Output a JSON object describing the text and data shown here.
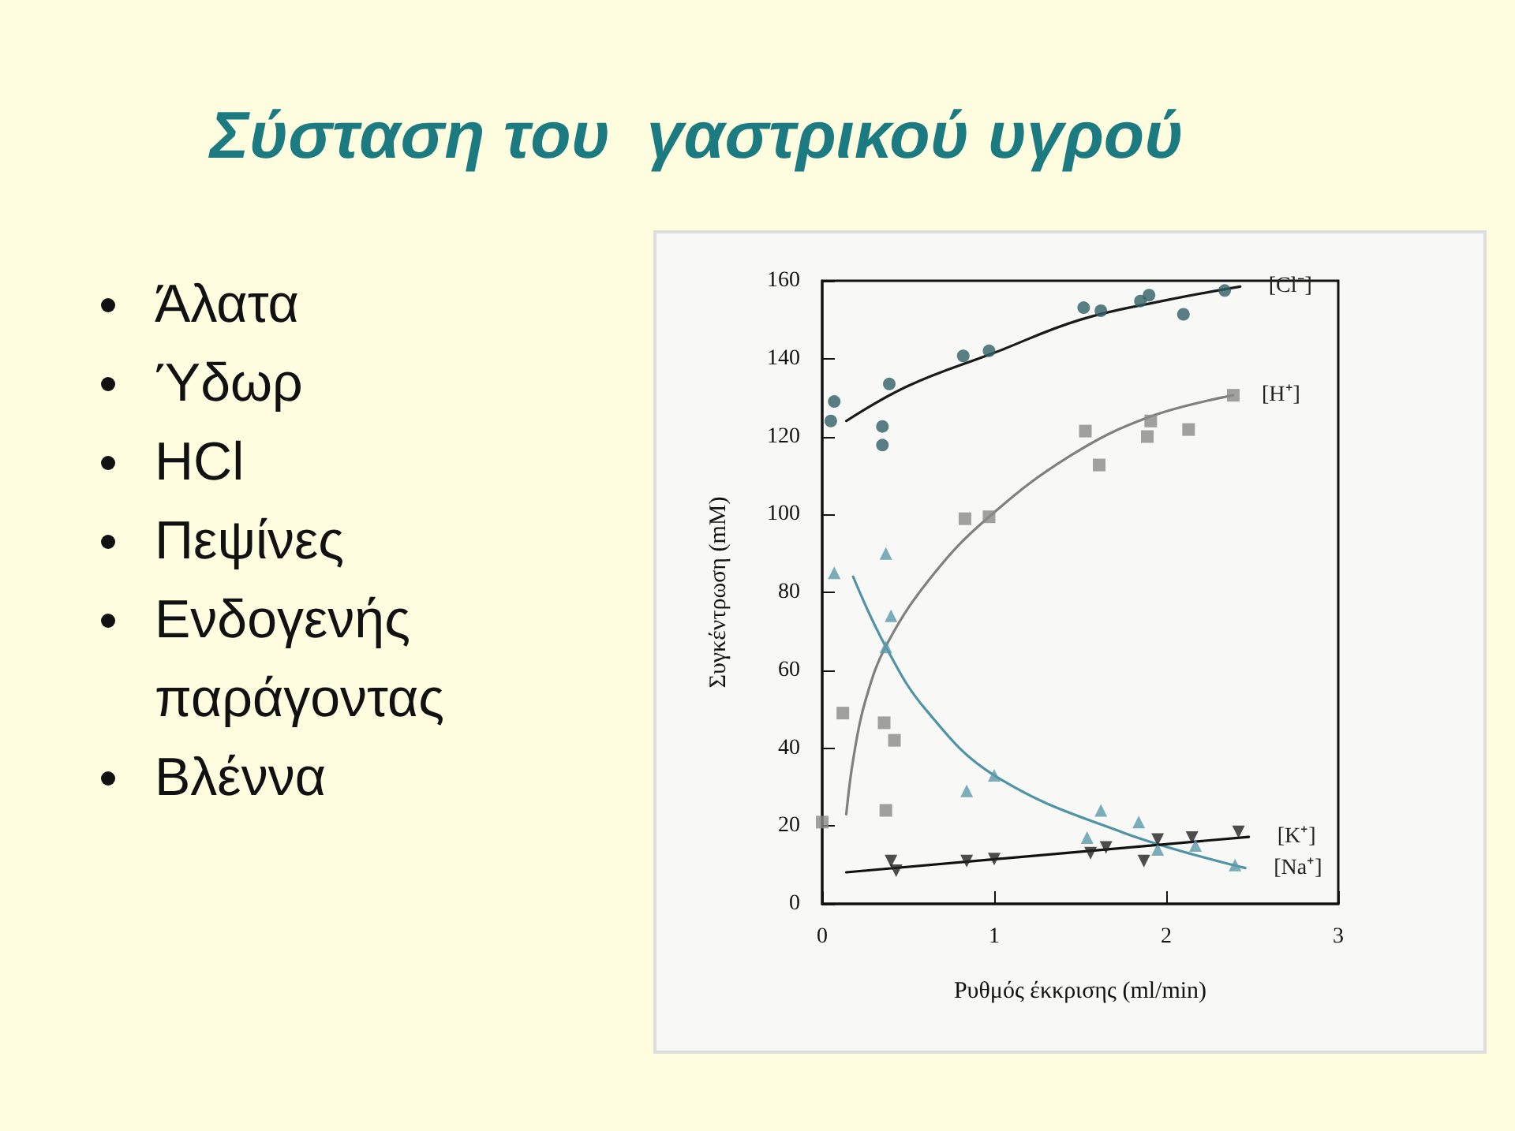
{
  "chart_data": {
    "type": "scatter",
    "title": "Σύσταση του  γαστρικού υγρού",
    "annotations": [
      "Άλατα",
      "Ύδωρ",
      "HCl",
      "Πεψίνες",
      "Ενδογενής παράγοντας",
      "Βλέννα"
    ],
    "xlabel": "Ρυθμός έκκρισης (ml/min)",
    "ylabel": "Συγκέντρωση (mM)",
    "xlim": [
      0,
      3
    ],
    "xticks": [
      0,
      1,
      2,
      3
    ],
    "ylim": [
      0,
      160
    ],
    "yticks": [
      0,
      20,
      40,
      60,
      80,
      100,
      120,
      140,
      160
    ],
    "grid": false,
    "legend": false,
    "series": [
      {
        "marker": "circle",
        "color": "#2f5f66",
        "x": [
          0.05,
          0.07,
          0.35,
          0.35,
          0.39,
          0.82,
          0.97,
          1.52,
          1.62,
          1.85,
          1.9,
          2.1,
          2.34
        ],
        "values": [
          124,
          129,
          122.6,
          117.8,
          133.5,
          140.7,
          142,
          153.1,
          152.3,
          154.8,
          156.3,
          151.4,
          157.5
        ]
      },
      {
        "type": "line",
        "name": "[Cl⁻]",
        "marker": "none",
        "line_style": "solid",
        "color": "#1a1a1a",
        "x": [
          0.14,
          0.5,
          1,
          1.5,
          2,
          2.43
        ],
        "values": [
          124,
          133,
          141.5,
          150,
          155,
          158.5
        ]
      },
      {
        "marker": "square",
        "color": "#8a8a8a",
        "x": [
          0,
          0.12,
          0.36,
          0.42,
          0.37,
          0.83,
          0.97,
          1.53,
          1.61,
          1.89,
          1.91,
          2.13,
          2.39
        ],
        "values": [
          21,
          49,
          46.5,
          42,
          24,
          98.9,
          99.4,
          121.4,
          112.7,
          120,
          124,
          121.8,
          130.6
        ]
      },
      {
        "type": "line",
        "name": "[H⁺]",
        "marker": "none",
        "line_style": "solid",
        "color": "#808080",
        "x": [
          0.14,
          0.18,
          0.25,
          0.38,
          0.65,
          0.97,
          1.44,
          1.9,
          2.39
        ],
        "values": [
          23,
          37,
          52,
          67,
          84.8,
          99.4,
          115,
          125,
          130.6
        ]
      },
      {
        "marker": "triangle",
        "color": "#5a9aaa",
        "x": [
          0.07,
          0.37,
          0.4,
          0.37,
          1,
          0.84,
          1.62,
          1.54,
          1.84,
          1.95,
          2.17,
          2.4
        ],
        "values": [
          85,
          90,
          74,
          66,
          33,
          29,
          24,
          17,
          21,
          14,
          15,
          10
        ]
      },
      {
        "type": "line",
        "name": "[Na⁺]",
        "marker": "none",
        "line_style": "solid",
        "color": "#4f93a5",
        "x": [
          0.18,
          0.37,
          0.6,
          1,
          1.75,
          2.46
        ],
        "values": [
          84,
          66,
          50,
          33,
          18.3,
          9.2
        ]
      },
      {
        "marker": "triangle-down",
        "color": "#222222",
        "x": [
          0.4,
          0.43,
          0.84,
          1,
          1.56,
          1.65,
          1.87,
          1.95,
          2.15,
          2.42
        ],
        "values": [
          11,
          8.5,
          11,
          11.5,
          13,
          14.5,
          11,
          16.5,
          17,
          18.5
        ]
      },
      {
        "type": "line",
        "name": "[K⁺]",
        "marker": "none",
        "line_style": "solid",
        "color": "#111111",
        "x": [
          0.14,
          2.48
        ],
        "values": [
          8.1,
          17.2
        ]
      }
    ]
  }
}
